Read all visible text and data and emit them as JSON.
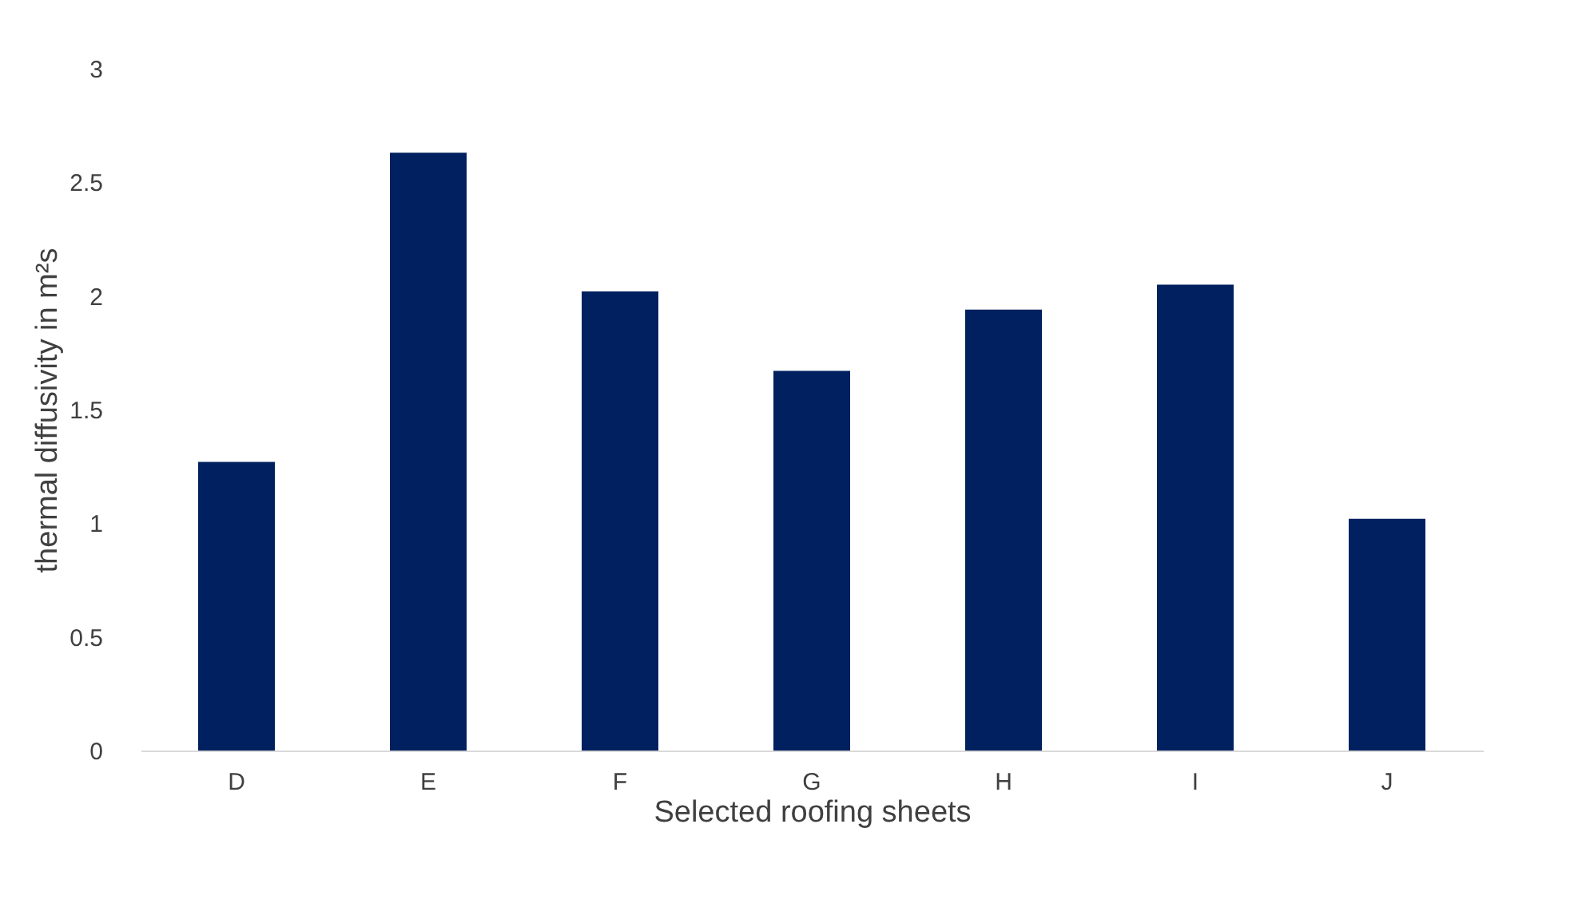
{
  "chart_data": {
    "type": "bar",
    "xlabel": "Selected roofing sheets",
    "ylabel": "thermal diffusivity in m²s",
    "categories": [
      "D",
      "E",
      "F",
      "G",
      "H",
      "I",
      "J"
    ],
    "values": [
      1.27,
      2.63,
      2.02,
      1.67,
      1.94,
      2.05,
      1.02
    ],
    "color": "#002060",
    "ylim": [
      0,
      3
    ],
    "yticks": [
      0,
      0.5,
      1,
      1.5,
      2,
      2.5,
      3
    ],
    "grid": false
  }
}
